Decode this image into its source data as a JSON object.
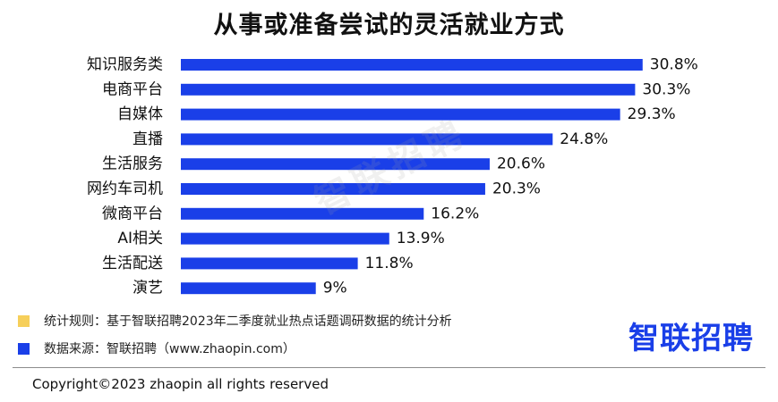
{
  "colors": {
    "bar": "#1a3fe8",
    "legend_rule": "#f6cf5a",
    "legend_source": "#1a3fe8",
    "brand": "#1a3fe8"
  },
  "chart_data": {
    "type": "bar",
    "orientation": "horizontal",
    "title": "从事或准备尝试的灵活就业方式",
    "categories": [
      "知识服务类",
      "电商平台",
      "自媒体",
      "直播",
      "生活服务",
      "网约车司机",
      "微商平台",
      "AI相关",
      "生活配送",
      "演艺"
    ],
    "values": [
      30.8,
      30.3,
      29.3,
      24.8,
      20.6,
      20.3,
      16.2,
      13.9,
      11.8,
      9
    ],
    "value_labels": [
      "30.8%",
      "30.3%",
      "29.3%",
      "24.8%",
      "20.6%",
      "20.3%",
      "16.2%",
      "13.9%",
      "11.8%",
      "9%"
    ],
    "xlim": [
      0,
      33.5
    ],
    "grid": false,
    "legend": "none"
  },
  "watermark": "智联招聘",
  "legend": {
    "rule_text": "统计规则：基于智联招聘2023年二季度就业热点话题调研数据的统计分析",
    "source_text": "数据来源：智联招聘（www.zhaopin.com）"
  },
  "brand": {
    "logo_text": "智联招聘"
  },
  "footer": {
    "copyright": "Copyright©2023 zhaopin all rights reserved"
  }
}
